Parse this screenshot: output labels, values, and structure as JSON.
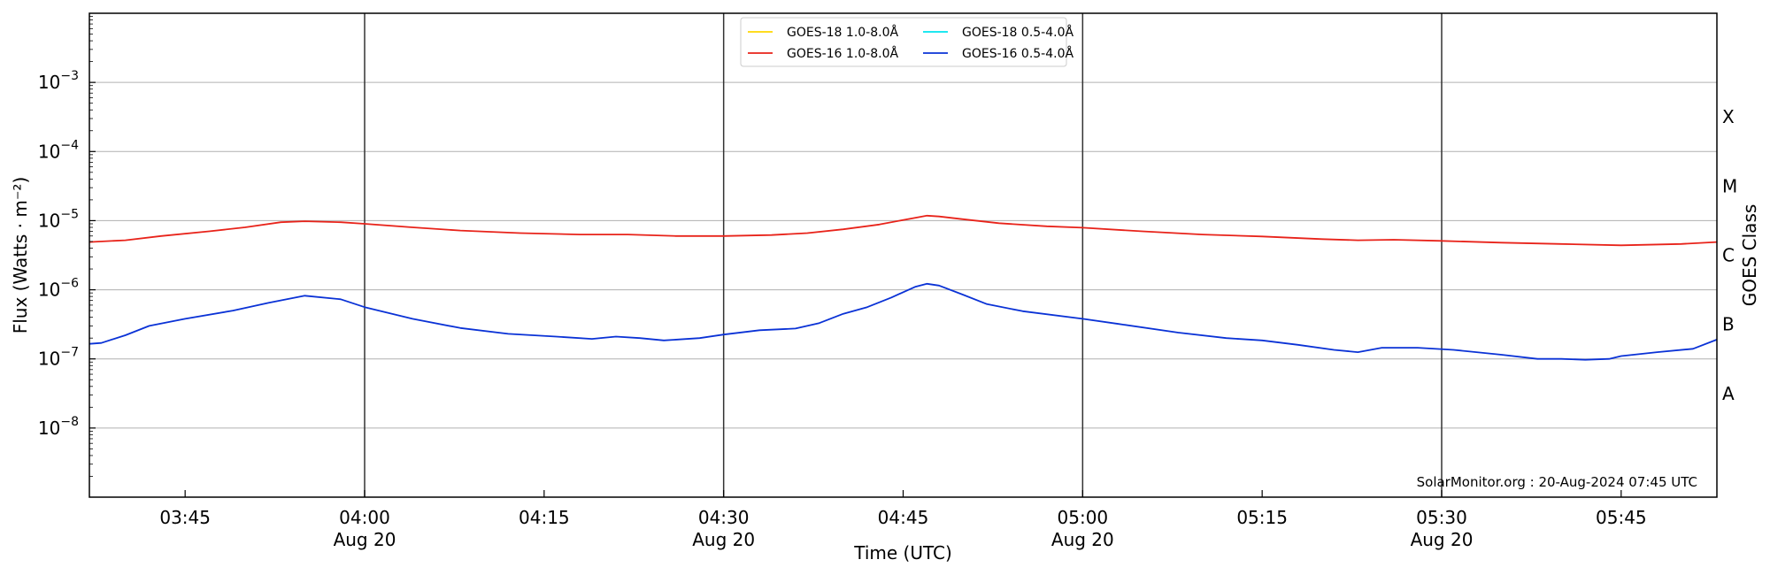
{
  "chart_data": {
    "type": "line",
    "xlabel": "Time (UTC)",
    "ylabel": "Flux (Watts · m⁻²)",
    "y2label": "GOES Class",
    "yscale": "log",
    "xlim": [
      "03:37",
      "05:53"
    ],
    "ylim": [
      1e-09,
      0.01
    ],
    "grid": "horizontal",
    "legend_location": "upper-center",
    "x_ticks": [
      {
        "label": "03:45",
        "date": ""
      },
      {
        "label": "04:00",
        "date": "Aug 20"
      },
      {
        "label": "04:15",
        "date": ""
      },
      {
        "label": "04:30",
        "date": "Aug 20"
      },
      {
        "label": "04:45",
        "date": ""
      },
      {
        "label": "05:00",
        "date": "Aug 20"
      },
      {
        "label": "05:15",
        "date": ""
      },
      {
        "label": "05:30",
        "date": "Aug 20"
      },
      {
        "label": "05:45",
        "date": ""
      }
    ],
    "x_tick_times": [
      "03:45",
      "04:00",
      "04:15",
      "04:30",
      "04:45",
      "05:00",
      "05:15",
      "05:30",
      "05:45"
    ],
    "vertical_lines": [
      "04:00",
      "04:30",
      "05:00",
      "05:30"
    ],
    "y_ticks": [
      {
        "value": 1e-08,
        "base": "10",
        "exp": "−8"
      },
      {
        "value": 1e-07,
        "base": "10",
        "exp": "−7"
      },
      {
        "value": 1e-06,
        "base": "10",
        "exp": "−6"
      },
      {
        "value": 1e-05,
        "base": "10",
        "exp": "−5"
      },
      {
        "value": 0.0001,
        "base": "10",
        "exp": "−4"
      },
      {
        "value": 0.001,
        "base": "10",
        "exp": "−3"
      }
    ],
    "goes_classes": [
      {
        "label": "A",
        "value": 3.16e-08
      },
      {
        "label": "B",
        "value": 3.16e-07
      },
      {
        "label": "C",
        "value": 3.16e-06
      },
      {
        "label": "M",
        "value": 3.16e-05
      },
      {
        "label": "X",
        "value": 0.000316
      }
    ],
    "series": [
      {
        "name": "GOES-18 1.0-8.0Å",
        "color": "#ffd700",
        "x": [],
        "values": []
      },
      {
        "name": "GOES-16 1.0-8.0Å",
        "color": "#e8231a",
        "x": [
          "03:37",
          "03:40",
          "03:43",
          "03:47",
          "03:50",
          "03:53",
          "03:55",
          "03:58",
          "04:00",
          "04:04",
          "04:08",
          "04:13",
          "04:18",
          "04:22",
          "04:26",
          "04:30",
          "04:34",
          "04:37",
          "04:40",
          "04:43",
          "04:46",
          "04:47",
          "04:48",
          "04:50",
          "04:53",
          "04:57",
          "05:00",
          "05:05",
          "05:10",
          "05:15",
          "05:20",
          "05:23",
          "05:26",
          "05:30",
          "05:35",
          "05:40",
          "05:45",
          "05:50",
          "05:53"
        ],
        "values": [
          4.9e-06,
          5.2e-06,
          6e-06,
          7e-06,
          8e-06,
          9.5e-06,
          9.8e-06,
          9.5e-06,
          9e-06,
          8e-06,
          7.2e-06,
          6.6e-06,
          6.3e-06,
          6.3e-06,
          6e-06,
          6e-06,
          6.2e-06,
          6.6e-06,
          7.5e-06,
          8.8e-06,
          1.1e-05,
          1.18e-05,
          1.15e-05,
          1.05e-05,
          9.2e-06,
          8.3e-06,
          7.9e-06,
          7e-06,
          6.3e-06,
          5.9e-06,
          5.4e-06,
          5.2e-06,
          5.3e-06,
          5.1e-06,
          4.8e-06,
          4.6e-06,
          4.4e-06,
          4.6e-06,
          4.9e-06
        ]
      },
      {
        "name": "GOES-18 0.5-4.0Å",
        "color": "#00e5ee",
        "x": [],
        "values": []
      },
      {
        "name": "GOES-16 0.5-4.0Å",
        "color": "#0a32d6",
        "x": [
          "03:37",
          "03:38",
          "03:40",
          "03:42",
          "03:45",
          "03:49",
          "03:52",
          "03:55",
          "03:58",
          "04:00",
          "04:04",
          "04:08",
          "04:12",
          "04:16",
          "04:19",
          "04:21",
          "04:23",
          "04:25",
          "04:28",
          "04:30",
          "04:33",
          "04:36",
          "04:38",
          "04:40",
          "04:42",
          "04:44",
          "04:46",
          "04:47",
          "04:48",
          "04:50",
          "04:52",
          "04:55",
          "05:00",
          "05:03",
          "05:08",
          "05:12",
          "05:15",
          "05:18",
          "05:21",
          "05:23",
          "05:25",
          "05:28",
          "05:31",
          "05:35",
          "05:38",
          "05:40",
          "05:42",
          "05:44",
          "05:45",
          "05:48",
          "05:51",
          "05:53"
        ],
        "values": [
          1.65e-07,
          1.7e-07,
          2.2e-07,
          3e-07,
          3.8e-07,
          5e-07,
          6.5e-07,
          8.2e-07,
          7.3e-07,
          5.6e-07,
          3.8e-07,
          2.8e-07,
          2.3e-07,
          2.1e-07,
          1.95e-07,
          2.1e-07,
          2e-07,
          1.85e-07,
          2e-07,
          2.25e-07,
          2.6e-07,
          2.75e-07,
          3.3e-07,
          4.5e-07,
          5.6e-07,
          7.7e-07,
          1.1e-06,
          1.22e-06,
          1.15e-06,
          8.5e-07,
          6.2e-07,
          4.9e-07,
          3.8e-07,
          3.2e-07,
          2.4e-07,
          2e-07,
          1.85e-07,
          1.6e-07,
          1.35e-07,
          1.25e-07,
          1.45e-07,
          1.45e-07,
          1.35e-07,
          1.15e-07,
          1e-07,
          1e-07,
          9.7e-08,
          1e-07,
          1.1e-07,
          1.25e-07,
          1.4e-07,
          1.9e-07
        ]
      }
    ],
    "annotation": "SolarMonitor.org : 20-Aug-2024 07:45 UTC"
  }
}
